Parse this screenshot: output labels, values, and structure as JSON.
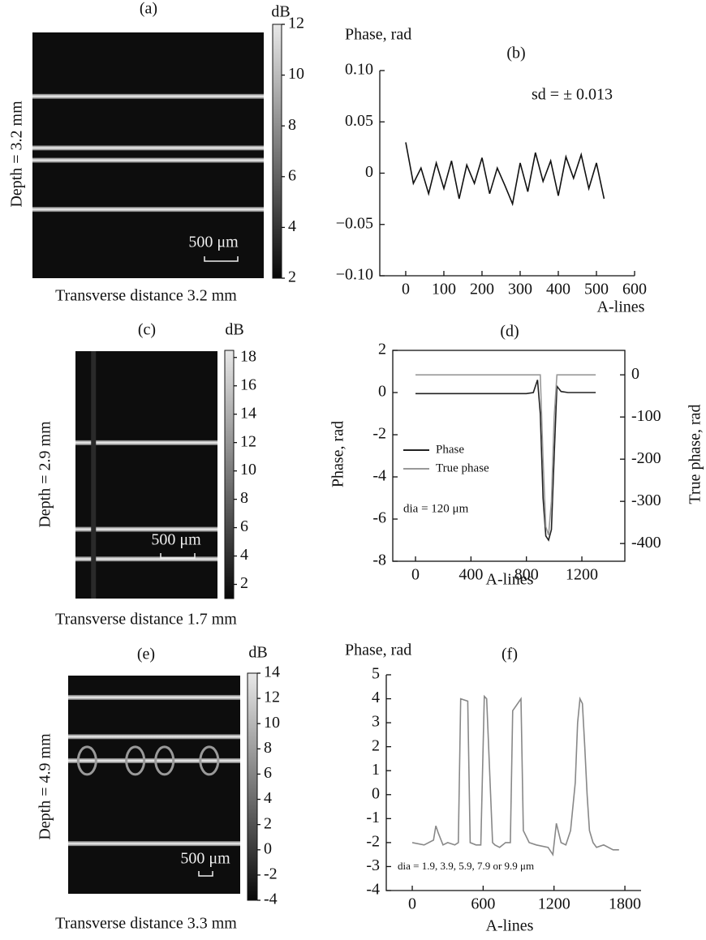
{
  "chart_data": [
    {
      "type": "image",
      "title": "(a)",
      "ylabel": "Depth = 3.2 mm",
      "xlabel": "Transverse distance 3.2 mm",
      "scale_bar_label": "500 μm",
      "colorbar_label": "dB",
      "colorbar_lim": [
        2,
        12
      ],
      "colorbar_ticks": [
        2,
        4,
        6,
        8,
        10,
        12
      ]
    },
    {
      "type": "line",
      "title": "(b)",
      "ylabel": "Phase, rad",
      "xlabel": "A-lines",
      "annotation": "sd = ± 0.013",
      "x": [
        0,
        20,
        40,
        60,
        80,
        100,
        120,
        140,
        160,
        180,
        200,
        220,
        240,
        260,
        280,
        300,
        320,
        340,
        360,
        380,
        400,
        420,
        440,
        460,
        480,
        500,
        520
      ],
      "series": [
        {
          "name": "Phase",
          "color": "#111111",
          "values": [
            0.03,
            -0.01,
            0.005,
            -0.02,
            0.01,
            -0.015,
            0.012,
            -0.025,
            0.008,
            -0.01,
            0.015,
            -0.02,
            0.005,
            -0.012,
            -0.03,
            0.01,
            -0.018,
            0.02,
            -0.008,
            0.012,
            -0.022,
            0.016,
            -0.005,
            0.018,
            -0.015,
            0.01,
            -0.025
          ]
        }
      ],
      "xlim": [
        -68,
        600
      ],
      "xticks": [
        0,
        100,
        200,
        300,
        400,
        500,
        600
      ],
      "ylim": [
        -0.1,
        0.1
      ],
      "yticks": [
        {
          "value": -0.1,
          "label": "−0.10"
        },
        {
          "value": -0.05,
          "label": "−0.05"
        },
        0,
        0.05,
        {
          "value": 0.1,
          "label": "0.10"
        }
      ]
    },
    {
      "type": "image",
      "title": "(c)",
      "ylabel": "Depth = 2.9 mm",
      "xlabel": "Transverse distance 1.7 mm",
      "scale_bar_label": "500 μm",
      "colorbar_label": "dB",
      "colorbar_lim": [
        1,
        18.5
      ],
      "colorbar_ticks": [
        2,
        4,
        6,
        8,
        10,
        12,
        14,
        16,
        18
      ]
    },
    {
      "type": "line",
      "title": "(d)",
      "ylabel": "Phase, rad",
      "y2label": "True phase, rad",
      "xlabel": "A-lines",
      "annotation": "dia = 120 μm",
      "frame": true,
      "x": [
        0,
        100,
        200,
        300,
        400,
        500,
        600,
        700,
        800,
        850,
        880,
        900,
        920,
        940,
        960,
        980,
        1000,
        1020,
        1050,
        1100,
        1200,
        1300
      ],
      "series": [
        {
          "name": "Phase",
          "color": "#222222",
          "values": [
            -0.05,
            -0.05,
            -0.05,
            -0.05,
            -0.05,
            -0.05,
            -0.05,
            -0.05,
            -0.05,
            0,
            0.6,
            -1,
            -5,
            -6.8,
            -7,
            -6.5,
            -3,
            0.3,
            0.05,
            0,
            0,
            0
          ]
        },
        {
          "name": "True phase",
          "color": "#999999",
          "axis": "y2",
          "values": [
            0,
            0,
            0,
            0,
            0,
            0,
            0,
            0,
            0,
            0,
            0,
            0,
            -200,
            -360,
            -380,
            -300,
            -100,
            0,
            0,
            0,
            0,
            0
          ]
        }
      ],
      "xlim": [
        -164,
        1510
      ],
      "xticks": [
        0,
        400,
        800,
        1200
      ],
      "ylim": [
        -8,
        2
      ],
      "yticks": [
        -8,
        -6,
        -4,
        -2,
        0,
        2
      ],
      "y2lim": [
        -442,
        58
      ],
      "y2ticks": [
        -400,
        -300,
        -200,
        -100,
        0
      ]
    },
    {
      "type": "image",
      "title": "(e)",
      "ylabel": "Depth = 4.9 mm",
      "xlabel": "Transverse distance 3.3 mm",
      "scale_bar_label": "500 μm",
      "colorbar_label": "dB",
      "colorbar_lim": [
        -4,
        14
      ],
      "colorbar_ticks": [
        -4,
        -2,
        0,
        2,
        4,
        6,
        8,
        10,
        12,
        14
      ]
    },
    {
      "type": "line",
      "title": "(f)",
      "ylabel": "Phase, rad",
      "xlabel": "A-lines",
      "annotation": "dia = 1.9, 3.9, 5.9, 7.9 or 9.9 μm",
      "x": [
        0,
        100,
        180,
        200,
        220,
        260,
        300,
        360,
        390,
        410,
        470,
        490,
        540,
        580,
        610,
        630,
        680,
        700,
        740,
        790,
        830,
        850,
        920,
        940,
        990,
        1050,
        1150,
        1190,
        1220,
        1260,
        1300,
        1340,
        1380,
        1400,
        1420,
        1440,
        1460,
        1480,
        1500,
        1530,
        1560,
        1620,
        1700,
        1750
      ],
      "series": [
        {
          "name": "Phase",
          "color": "#888888",
          "values": [
            -2,
            -2.1,
            -1.9,
            -1.3,
            -1.6,
            -2.1,
            -2,
            -2.1,
            -2,
            4,
            3.9,
            -2,
            -2.1,
            -2.1,
            4.1,
            4,
            -2,
            -2.1,
            -2.2,
            -2,
            -2,
            3.5,
            4,
            -1.5,
            -2,
            -2.1,
            -2.2,
            -2.5,
            -1.2,
            -2,
            -2.1,
            -1.5,
            0.5,
            3,
            4,
            3.8,
            2,
            0,
            -1.5,
            -2,
            -2.2,
            -2.1,
            -2.3,
            -2.3
          ]
        }
      ],
      "xlim": [
        -220,
        1937
      ],
      "xticks": [
        0,
        600,
        1200,
        1800
      ],
      "ylim": [
        -4,
        5
      ],
      "yticks": [
        -4,
        -3,
        -2,
        -1,
        0,
        1,
        2,
        3,
        4,
        5
      ]
    }
  ]
}
